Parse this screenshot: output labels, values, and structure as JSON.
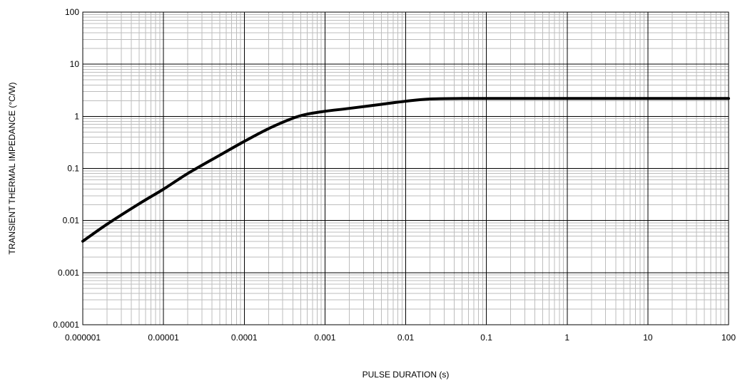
{
  "chart_data": {
    "type": "line",
    "xscale": "log",
    "yscale": "log",
    "xlim": [
      1e-06,
      100
    ],
    "ylim": [
      0.0001,
      100
    ],
    "xlabel": "PULSE DURATION (s)",
    "ylabel": "TRANSIENT THERMAL IMPEDANCE (°C/W)",
    "grid": true,
    "x_ticks": [
      {
        "value": 1e-06,
        "label": "0.000001"
      },
      {
        "value": 1e-05,
        "label": "0.00001"
      },
      {
        "value": 0.0001,
        "label": "0.0001"
      },
      {
        "value": 0.001,
        "label": "0.001"
      },
      {
        "value": 0.01,
        "label": "0.01"
      },
      {
        "value": 0.1,
        "label": "0.1"
      },
      {
        "value": 1,
        "label": "1"
      },
      {
        "value": 10,
        "label": "10"
      },
      {
        "value": 100,
        "label": "100"
      }
    ],
    "y_ticks": [
      {
        "value": 0.0001,
        "label": "0.0001"
      },
      {
        "value": 0.001,
        "label": "0.001"
      },
      {
        "value": 0.01,
        "label": "0.01"
      },
      {
        "value": 0.1,
        "label": "0.1"
      },
      {
        "value": 1,
        "label": "1"
      },
      {
        "value": 10,
        "label": "10"
      },
      {
        "value": 100,
        "label": "100"
      }
    ],
    "series": [
      {
        "x": [
          1e-06,
          2e-06,
          5e-06,
          1e-05,
          2e-05,
          5e-05,
          0.0001,
          0.0002,
          0.0004,
          0.0006,
          0.001,
          0.002,
          0.005,
          0.01,
          0.02,
          0.05,
          0.1,
          1,
          10,
          100
        ],
        "y": [
          0.004,
          0.0085,
          0.021,
          0.04,
          0.08,
          0.18,
          0.33,
          0.58,
          0.92,
          1.1,
          1.25,
          1.42,
          1.7,
          1.95,
          2.15,
          2.2,
          2.2,
          2.2,
          2.2,
          2.2
        ]
      }
    ]
  }
}
